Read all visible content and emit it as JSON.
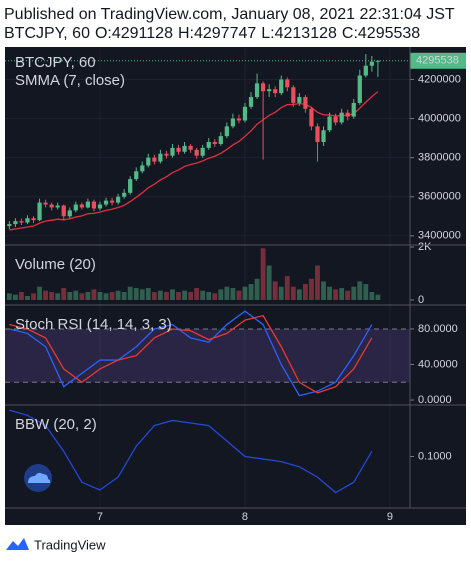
{
  "header": {
    "published": "Published on TradingView.com, January 08, 2021 22:31:04 JST",
    "ohlc_labels": [
      "O:",
      "H:",
      "L:",
      "C:"
    ]
  },
  "chart_data": [
    {
      "type": "candlestick",
      "title": "BTCJPY, 60",
      "x": [
        6.375,
        6.4167,
        6.4583,
        6.5,
        6.5417,
        6.5833,
        6.625,
        6.6667,
        6.7083,
        6.75,
        6.7917,
        6.8333,
        6.875,
        6.9167,
        6.9583,
        7,
        7.0417,
        7.0833,
        7.125,
        7.1667,
        7.2083,
        7.25,
        7.2917,
        7.3333,
        7.375,
        7.4167,
        7.4583,
        7.5,
        7.5417,
        7.5833,
        7.625,
        7.6667,
        7.7083,
        7.75,
        7.7917,
        7.8333,
        7.875,
        7.9167,
        7.9583,
        8,
        8.0417,
        8.0833,
        8.125,
        8.1667,
        8.2083,
        8.25,
        8.2917,
        8.3333,
        8.375,
        8.4167,
        8.4583,
        8.5,
        8.5417,
        8.5833,
        8.625,
        8.6667,
        8.7083,
        8.75,
        8.7917,
        8.8333,
        8.875,
        8.9167
      ],
      "open": [
        3450000,
        3460000,
        3475000,
        3468000,
        3490000,
        3480000,
        3570000,
        3560000,
        3545000,
        3555000,
        3500000,
        3530000,
        3560000,
        3545000,
        3575000,
        3540000,
        3560000,
        3580000,
        3570000,
        3600000,
        3620000,
        3690000,
        3730000,
        3760000,
        3800000,
        3780000,
        3820000,
        3810000,
        3850000,
        3830000,
        3860000,
        3840000,
        3810000,
        3850000,
        3880000,
        3870000,
        3910000,
        3960000,
        4000000,
        3990000,
        4060000,
        4110000,
        4180000,
        4140000,
        4150000,
        4130000,
        4200000,
        4160000,
        4080000,
        4110000,
        4050000,
        3960000,
        3880000,
        3940000,
        4010000,
        3980000,
        4030000,
        4010000,
        4080000,
        4220000,
        4270000,
        4291128
      ],
      "high": [
        3475000,
        3490000,
        3488000,
        3505000,
        3500000,
        3590000,
        3585000,
        3570000,
        3570000,
        3560000,
        3545000,
        3575000,
        3570000,
        3590000,
        3585000,
        3575000,
        3595000,
        3595000,
        3615000,
        3640000,
        3705000,
        3750000,
        3780000,
        3820000,
        3815000,
        3840000,
        3835000,
        3870000,
        3865000,
        3880000,
        3870000,
        3850000,
        3865000,
        3900000,
        3895000,
        3930000,
        3980000,
        4025000,
        4020000,
        4080000,
        4135000,
        4230000,
        4190000,
        4175000,
        4165000,
        4220000,
        4210000,
        4170000,
        4130000,
        4120000,
        4060000,
        3975000,
        3960000,
        4030000,
        4025000,
        4050000,
        4045000,
        4100000,
        4250000,
        4330000,
        4320000,
        4297747
      ],
      "low": [
        3435000,
        3445000,
        3455000,
        3460000,
        3465000,
        3475000,
        3545000,
        3530000,
        3535000,
        3480000,
        3490000,
        3520000,
        3535000,
        3540000,
        3525000,
        3530000,
        3550000,
        3555000,
        3560000,
        3590000,
        3610000,
        3680000,
        3720000,
        3750000,
        3765000,
        3770000,
        3795000,
        3800000,
        3815000,
        3820000,
        3825000,
        3795000,
        3800000,
        3840000,
        3855000,
        3860000,
        3900000,
        3950000,
        3975000,
        3980000,
        4050000,
        4100000,
        3790000,
        4110000,
        4110000,
        4120000,
        4140000,
        4060000,
        4065000,
        4030000,
        3940000,
        3780000,
        3860000,
        3930000,
        3965000,
        3970000,
        3990000,
        4000000,
        4070000,
        4210000,
        4240000,
        4213128
      ],
      "close": [
        3460000,
        3475000,
        3468000,
        3490000,
        3480000,
        3570000,
        3560000,
        3545000,
        3555000,
        3500000,
        3530000,
        3560000,
        3545000,
        3575000,
        3540000,
        3560000,
        3580000,
        3570000,
        3600000,
        3620000,
        3690000,
        3730000,
        3760000,
        3800000,
        3780000,
        3820000,
        3810000,
        3850000,
        3830000,
        3860000,
        3840000,
        3810000,
        3850000,
        3880000,
        3870000,
        3910000,
        3960000,
        4000000,
        3990000,
        4060000,
        4110000,
        4180000,
        4140000,
        4150000,
        4130000,
        4200000,
        4160000,
        4080000,
        4110000,
        4050000,
        3960000,
        3880000,
        3940000,
        4010000,
        3980000,
        4030000,
        4010000,
        4080000,
        4220000,
        4270000,
        4291128,
        4295538
      ],
      "up_color": "#53b987",
      "down_color": "#eb4d5c",
      "xlim": [
        6.345,
        9.138
      ],
      "xticks": [
        7,
        8,
        9
      ],
      "ylim": [
        3353000,
        4366000
      ],
      "yticks": [
        3400000,
        3600000,
        3800000,
        4000000,
        4200000
      ],
      "grid": true,
      "series": [
        {
          "name": "SMMA (7, close)",
          "color": "#e0303f",
          "values": [
            3430000,
            3435000,
            3440000,
            3445000,
            3450000,
            3465000,
            3475000,
            3480000,
            3485000,
            3482000,
            3487000,
            3496000,
            3502000,
            3513000,
            3515000,
            3521000,
            3530000,
            3536000,
            3545000,
            3556000,
            3575000,
            3597000,
            3620000,
            3646000,
            3664000,
            3686000,
            3702000,
            3723000,
            3737000,
            3755000,
            3765000,
            3772000,
            3783000,
            3797000,
            3807000,
            3822000,
            3842000,
            3865000,
            3883000,
            3909000,
            3937000,
            3971000,
            3994000,
            4016000,
            4032000,
            4056000,
            4071000,
            4072000,
            4077000,
            4073000,
            4057000,
            4032000,
            4019000,
            4018000,
            4013000,
            4016000,
            4015000,
            4025000,
            4053000,
            4084000,
            4112000,
            4138000
          ]
        }
      ]
    },
    {
      "type": "bar",
      "title": "Volume (20)",
      "values": [
        250,
        200,
        300,
        150,
        250,
        500,
        350,
        300,
        250,
        450,
        300,
        350,
        250,
        300,
        400,
        300,
        250,
        300,
        350,
        300,
        500,
        450,
        400,
        450,
        300,
        350,
        300,
        400,
        300,
        350,
        300,
        450,
        350,
        300,
        250,
        400,
        500,
        450,
        350,
        500,
        600,
        800,
        1950,
        1300,
        700,
        500,
        900,
        500,
        400,
        600,
        800,
        1300,
        700,
        500,
        400,
        450,
        350,
        500,
        700,
        600,
        300,
        200
      ],
      "ylim": [
        -190,
        2075
      ],
      "yticks": [
        0,
        {
          "value": 2000,
          "label": "2K"
        }
      ]
    },
    {
      "type": "line",
      "title": "Stoch RSI (14, 14, 3, 3)",
      "x": [
        6.375,
        6.5,
        6.625,
        6.75,
        6.875,
        7,
        7.125,
        7.25,
        7.375,
        7.5,
        7.625,
        7.75,
        7.875,
        8,
        8.125,
        8.25,
        8.375,
        8.5,
        8.625,
        8.75,
        8.875
      ],
      "series": [
        {
          "color": "#2962ff",
          "values": [
            80,
            75,
            60,
            15,
            30,
            45,
            45,
            60,
            80,
            85,
            70,
            65,
            85,
            100,
            85,
            40,
            5,
            10,
            20,
            50,
            85
          ]
        },
        {
          "color": "#e53935",
          "values": [
            85,
            80,
            70,
            35,
            20,
            35,
            45,
            50,
            70,
            80,
            78,
            68,
            75,
            90,
            95,
            60,
            20,
            8,
            15,
            35,
            70
          ]
        }
      ],
      "band": [
        20,
        80
      ],
      "band_color": "#7e57c2",
      "ylim": [
        -5.6,
        107
      ],
      "yticks": [
        {
          "value": 0,
          "label": "0.0000"
        },
        {
          "value": 40,
          "label": "40.0000"
        },
        {
          "value": 80,
          "label": "80.0000"
        }
      ]
    },
    {
      "type": "line",
      "title": "BBW (20, 2)",
      "x": [
        6.375,
        6.5,
        6.625,
        6.75,
        6.875,
        7,
        7.125,
        7.25,
        7.375,
        7.5,
        7.625,
        7.75,
        7.875,
        8,
        8.125,
        8.25,
        8.375,
        8.5,
        8.625,
        8.75,
        8.875
      ],
      "series": [
        {
          "color": "#2448d8",
          "values": [
            0.19,
            0.18,
            0.16,
            0.11,
            0.05,
            0.035,
            0.06,
            0.12,
            0.16,
            0.17,
            0.165,
            0.16,
            0.13,
            0.1,
            0.095,
            0.09,
            0.08,
            0.06,
            0.03,
            0.05,
            0.11
          ]
        }
      ],
      "ylim": [
        0,
        0.2
      ],
      "yticks": [
        {
          "value": 0.1,
          "label": "0.1000"
        }
      ]
    }
  ],
  "footer": {
    "brand": "TradingView"
  }
}
